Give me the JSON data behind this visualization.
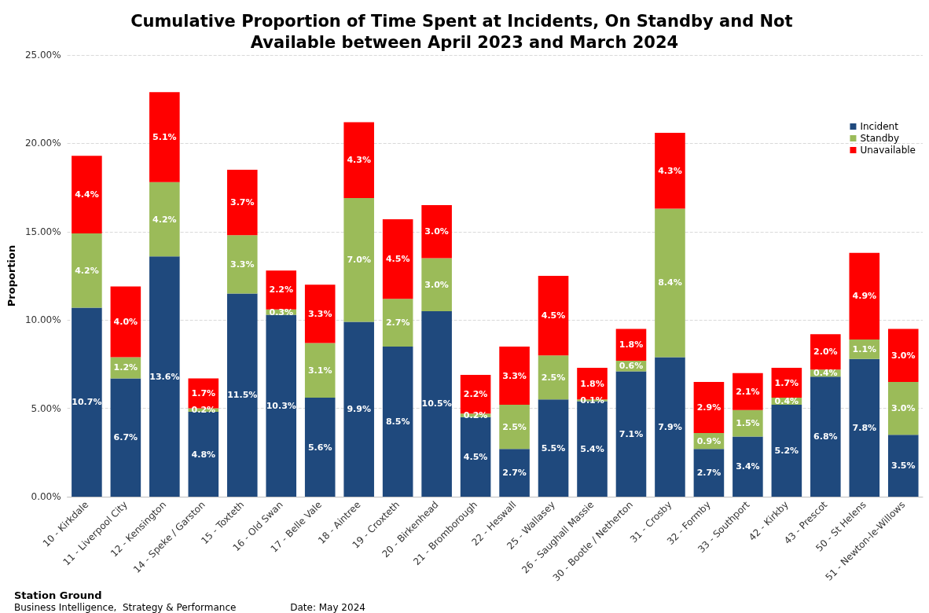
{
  "chart_data": {
    "type": "bar",
    "stacked": true,
    "title": "Cumulative Proportion of Time Spent at Incidents, On Standby and Not Available between April 2023 and March 2024",
    "ylabel": "Proportion",
    "xlabel": "Station Ground",
    "annotations": [
      "Business Intelligence,  Strategy & Performance",
      "Date: May 2024"
    ],
    "categories": [
      "10 - Kirkdale",
      "11 - Liverpool City",
      "12 - Kensington",
      "14 - Speke / Garston",
      "15 - Toxteth",
      "16 - Old Swan",
      "17 - Belle Vale",
      "18 - Aintree",
      "19 - Croxteth",
      "20 - Birkenhead",
      "21 - Bromborough",
      "22 - Heswall",
      "25 - Wallasey",
      "26 - Saughall Massie",
      "30 - Bootle / Netherton",
      "31 - Crosby",
      "32 - Formby",
      "33 - Southport",
      "42 - Kirkby",
      "43 - Prescot",
      "50 - St Helens",
      "51 - Newton-le-Willows"
    ],
    "series": [
      {
        "name": "Incident",
        "color": "#1f497d",
        "values": [
          10.7,
          6.7,
          13.6,
          4.8,
          11.5,
          10.3,
          5.6,
          9.9,
          8.5,
          10.5,
          4.5,
          2.7,
          5.5,
          5.4,
          7.1,
          7.9,
          2.7,
          3.4,
          5.2,
          6.8,
          7.8,
          3.5
        ],
        "value_labels": [
          "10.7%",
          "6.7%",
          "13.6%",
          "4.8%",
          "11.5%",
          "10.3%",
          "5.6%",
          "9.9%",
          "8.5%",
          "10.5%",
          "4.5%",
          "2.7%",
          "5.5%",
          "5.4%",
          "7.1%",
          "7.9%",
          "2.7%",
          "3.4%",
          "5.2%",
          "6.8%",
          "7.8%",
          "3.5%"
        ]
      },
      {
        "name": "Standby",
        "color": "#9bbb59",
        "values": [
          4.2,
          1.2,
          4.2,
          0.2,
          3.3,
          0.3,
          3.1,
          7.0,
          2.7,
          3.0,
          0.2,
          2.5,
          2.5,
          0.1,
          0.6,
          8.4,
          0.9,
          1.5,
          0.4,
          0.4,
          1.1,
          3.0
        ],
        "value_labels": [
          "4.2%",
          "1.2%",
          "4.2%",
          "0.2%",
          "3.3%",
          "0.3%",
          "3.1%",
          "7.0%",
          "2.7%",
          "3.0%",
          "0.2%",
          "2.5%",
          "2.5%",
          "0.1%",
          "0.6%",
          "8.4%",
          "0.9%",
          "1.5%",
          "0.4%",
          "0.4%",
          "1.1%",
          "3.0%"
        ]
      },
      {
        "name": "Unavailable",
        "color": "#ff0000",
        "values": [
          4.4,
          4.0,
          5.1,
          1.7,
          3.7,
          2.2,
          3.3,
          4.3,
          4.5,
          3.0,
          2.2,
          3.3,
          4.5,
          1.8,
          1.8,
          4.3,
          2.9,
          2.1,
          1.7,
          2.0,
          4.9,
          3.0
        ],
        "value_labels": [
          "4.4%",
          "4.0%",
          "5.1%",
          "1.7%",
          "3.7%",
          "2.2%",
          "3.3%",
          "4.3%",
          "4.5%",
          "3.0%",
          "2.2%",
          "3.3%",
          "4.5%",
          "1.8%",
          "1.8%",
          "4.3%",
          "2.9%",
          "2.1%",
          "1.7%",
          "2.0%",
          "4.9%",
          "3.0%"
        ]
      }
    ],
    "ylim": [
      0,
      25
    ],
    "yticks": [
      {
        "value": 0,
        "label": "0.00%"
      },
      {
        "value": 5,
        "label": "5.00%"
      },
      {
        "value": 10,
        "label": "10.00%"
      },
      {
        "value": 15,
        "label": "15.00%"
      },
      {
        "value": 20,
        "label": "20.00%"
      },
      {
        "value": 25,
        "label": "25.00%"
      }
    ],
    "grid": "y",
    "legend": "top right"
  }
}
